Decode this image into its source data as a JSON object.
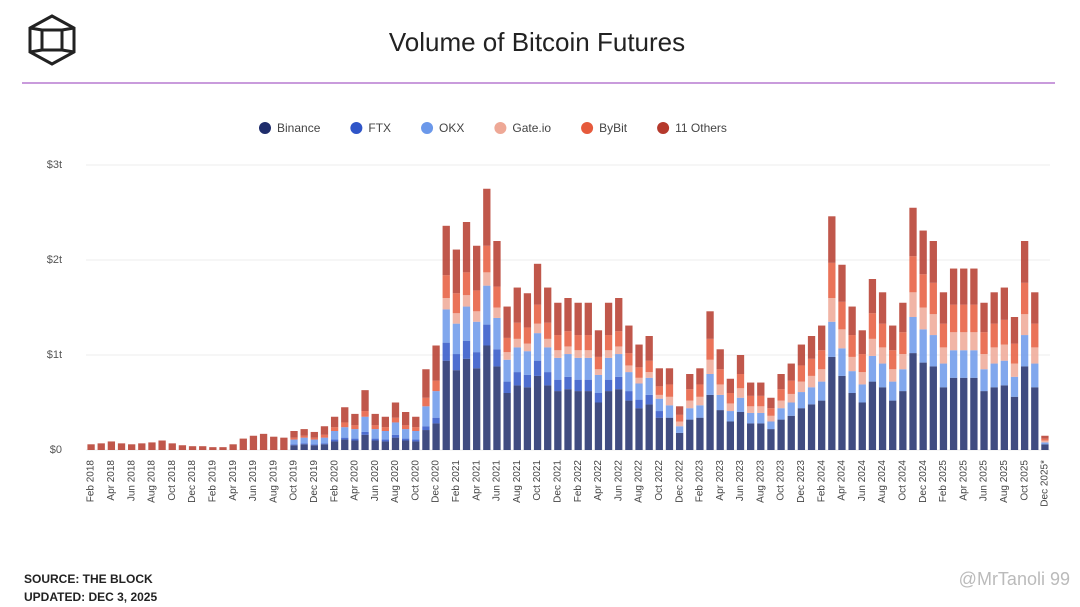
{
  "chart_data": {
    "type": "stacked_bar",
    "title": "Volume of Bitcoin Futures",
    "source": "SOURCE: THE BLOCK",
    "updated": "UPDATED: DEC 3, 2025",
    "watermark": "@MrTanoli 99",
    "categories": [
      "Feb 2018",
      null,
      "Apr 2018",
      null,
      "Jun 2018",
      null,
      "Aug 2018",
      null,
      "Oct 2018",
      null,
      "Dec 2018",
      null,
      "Feb 2019",
      null,
      "Apr 2019",
      null,
      "Jun 2019",
      null,
      "Aug 2019",
      null,
      "Oct 2019",
      null,
      "Dec 2019",
      null,
      "Feb 2020",
      null,
      "Apr 2020",
      null,
      "Jun 2020",
      null,
      "Aug 2020",
      null,
      "Oct 2020",
      null,
      "Dec 2020",
      null,
      "Feb 2021",
      null,
      "Apr 2021",
      null,
      "Jun 2021",
      null,
      "Aug 2021",
      null,
      "Oct 2021",
      null,
      "Dec 2021",
      null,
      "Feb 2022",
      null,
      "Apr 2022",
      null,
      "Jun 2022",
      null,
      "Aug 2022",
      null,
      "Oct 2022",
      null,
      "Dec 2022",
      null,
      "Feb 2023",
      null,
      "Apr 2023",
      null,
      "Jun 2023",
      null,
      "Aug 2023",
      null,
      "Oct 2023",
      null,
      "Dec 2023",
      null,
      "Feb 2024",
      null,
      "Apr 2024",
      null,
      "Jun 2024",
      null,
      "Aug 2024",
      null,
      "Oct 2024",
      null,
      "Dec 2024",
      null,
      "Feb 2025",
      null,
      "Apr 2025",
      null,
      "Jun 2025",
      null,
      "Aug 2025",
      null,
      "Oct 2025",
      null,
      "Dec 2025*"
    ],
    "series": [
      {
        "name": "Binance",
        "color": "#1f2d6b",
        "values": [
          0,
          0,
          0,
          0,
          0,
          0,
          0,
          0,
          0,
          0,
          0,
          0,
          0,
          0,
          0,
          0,
          0,
          0,
          0,
          0,
          0.05,
          0.06,
          0.05,
          0.06,
          0.09,
          0.11,
          0.1,
          0.16,
          0.1,
          0.09,
          0.13,
          0.1,
          0.09,
          0.21,
          0.28,
          0.94,
          0.84,
          0.96,
          0.86,
          1.1,
          0.88,
          0.6,
          0.68,
          0.66,
          0.78,
          0.68,
          0.62,
          0.64,
          0.62,
          0.62,
          0.5,
          0.62,
          0.64,
          0.52,
          0.44,
          0.48,
          0.34,
          0.34,
          0.18,
          0.32,
          0.34,
          0.58,
          0.42,
          0.3,
          0.4,
          0.28,
          0.28,
          0.22,
          0.32,
          0.36,
          0.44,
          0.48,
          0.52,
          0.98,
          0.78,
          0.6,
          0.5,
          0.72,
          0.66,
          0.52,
          0.62,
          1.02,
          0.92,
          0.88,
          0.66,
          0.76,
          0.76,
          0.76,
          0.62,
          0.66,
          0.68,
          0.56,
          0.88,
          0.66,
          0.06
        ]
      },
      {
        "name": "FTX",
        "color": "#2f55c8",
        "values": [
          0,
          0,
          0,
          0,
          0,
          0,
          0,
          0,
          0,
          0,
          0,
          0,
          0,
          0,
          0,
          0,
          0,
          0,
          0,
          0,
          0.01,
          0.01,
          0.01,
          0.01,
          0.02,
          0.02,
          0.02,
          0.03,
          0.02,
          0.02,
          0.03,
          0.02,
          0.02,
          0.04,
          0.06,
          0.19,
          0.17,
          0.19,
          0.17,
          0.22,
          0.18,
          0.12,
          0.14,
          0.13,
          0.16,
          0.14,
          0.12,
          0.13,
          0.12,
          0.12,
          0.1,
          0.12,
          0.13,
          0.1,
          0.09,
          0.1,
          0.07,
          0,
          0,
          0,
          0,
          0,
          0,
          0,
          0,
          0,
          0,
          0,
          0,
          0,
          0,
          0,
          0,
          0,
          0,
          0,
          0,
          0,
          0,
          0,
          0,
          0,
          0,
          0,
          0,
          0,
          0,
          0,
          0,
          0,
          0,
          0,
          0,
          0,
          0
        ]
      },
      {
        "name": "OKX",
        "color": "#6b98ea",
        "values": [
          0,
          0,
          0,
          0,
          0,
          0,
          0,
          0,
          0,
          0,
          0,
          0,
          0,
          0,
          0,
          0,
          0,
          0,
          0,
          0,
          0.05,
          0.06,
          0.05,
          0.06,
          0.09,
          0.11,
          0.1,
          0.16,
          0.1,
          0.09,
          0.13,
          0.1,
          0.09,
          0.21,
          0.28,
          0.35,
          0.32,
          0.36,
          0.32,
          0.41,
          0.33,
          0.23,
          0.26,
          0.25,
          0.29,
          0.26,
          0.23,
          0.24,
          0.23,
          0.23,
          0.19,
          0.23,
          0.24,
          0.2,
          0.17,
          0.18,
          0.13,
          0.13,
          0.07,
          0.12,
          0.13,
          0.22,
          0.16,
          0.11,
          0.15,
          0.11,
          0.11,
          0.08,
          0.12,
          0.14,
          0.17,
          0.18,
          0.2,
          0.37,
          0.29,
          0.23,
          0.19,
          0.27,
          0.25,
          0.2,
          0.23,
          0.38,
          0.35,
          0.33,
          0.25,
          0.29,
          0.29,
          0.29,
          0.23,
          0.25,
          0.26,
          0.21,
          0.33,
          0.25,
          0.02
        ]
      },
      {
        "name": "Gate.io",
        "color": "#eea896",
        "values": [
          0,
          0,
          0,
          0,
          0,
          0,
          0,
          0,
          0,
          0,
          0,
          0,
          0,
          0,
          0,
          0,
          0,
          0,
          0,
          0,
          0,
          0,
          0,
          0,
          0,
          0,
          0,
          0,
          0,
          0,
          0,
          0,
          0,
          0,
          0,
          0.12,
          0.11,
          0.12,
          0.11,
          0.14,
          0.11,
          0.08,
          0.09,
          0.08,
          0.1,
          0.09,
          0.08,
          0.08,
          0.08,
          0.08,
          0.06,
          0.08,
          0.08,
          0.07,
          0.06,
          0.06,
          0.04,
          0.09,
          0.05,
          0.08,
          0.09,
          0.15,
          0.11,
          0.08,
          0.1,
          0.07,
          0.07,
          0.06,
          0.08,
          0.09,
          0.11,
          0.12,
          0.13,
          0.25,
          0.2,
          0.15,
          0.13,
          0.18,
          0.17,
          0.13,
          0.16,
          0.26,
          0.23,
          0.22,
          0.17,
          0.19,
          0.19,
          0.19,
          0.16,
          0.17,
          0.17,
          0.14,
          0.22,
          0.17,
          0.02
        ]
      },
      {
        "name": "ByBit",
        "color": "#e65a3c",
        "values": [
          0,
          0,
          0,
          0,
          0,
          0,
          0,
          0,
          0,
          0,
          0,
          0,
          0,
          0,
          0,
          0,
          0,
          0,
          0,
          0,
          0.02,
          0.02,
          0.02,
          0.03,
          0.04,
          0.05,
          0.04,
          0.06,
          0.04,
          0.04,
          0.05,
          0.04,
          0.04,
          0.09,
          0.11,
          0.24,
          0.21,
          0.24,
          0.22,
          0.28,
          0.22,
          0.15,
          0.17,
          0.17,
          0.2,
          0.17,
          0.16,
          0.16,
          0.16,
          0.16,
          0.13,
          0.16,
          0.16,
          0.13,
          0.11,
          0.12,
          0.09,
          0.13,
          0.07,
          0.12,
          0.13,
          0.22,
          0.16,
          0.11,
          0.15,
          0.11,
          0.11,
          0.08,
          0.12,
          0.14,
          0.17,
          0.18,
          0.2,
          0.37,
          0.29,
          0.23,
          0.19,
          0.27,
          0.25,
          0.2,
          0.23,
          0.38,
          0.35,
          0.33,
          0.25,
          0.29,
          0.29,
          0.29,
          0.23,
          0.25,
          0.26,
          0.21,
          0.33,
          0.25,
          0.02
        ]
      },
      {
        "name": "11 Others",
        "color": "#b5392c",
        "values": [
          0.06,
          0.07,
          0.09,
          0.07,
          0.06,
          0.07,
          0.08,
          0.1,
          0.07,
          0.05,
          0.04,
          0.04,
          0.03,
          0.03,
          0.06,
          0.12,
          0.15,
          0.17,
          0.14,
          0.13,
          0.07,
          0.07,
          0.06,
          0.09,
          0.11,
          0.16,
          0.12,
          0.22,
          0.12,
          0.11,
          0.16,
          0.14,
          0.11,
          0.3,
          0.37,
          0.52,
          0.46,
          0.53,
          0.47,
          0.6,
          0.48,
          0.33,
          0.37,
          0.36,
          0.43,
          0.37,
          0.34,
          0.35,
          0.34,
          0.34,
          0.28,
          0.34,
          0.35,
          0.29,
          0.24,
          0.26,
          0.19,
          0.17,
          0.09,
          0.16,
          0.17,
          0.29,
          0.21,
          0.15,
          0.2,
          0.14,
          0.14,
          0.11,
          0.16,
          0.18,
          0.22,
          0.24,
          0.26,
          0.49,
          0.39,
          0.3,
          0.25,
          0.36,
          0.33,
          0.26,
          0.31,
          0.51,
          0.46,
          0.44,
          0.33,
          0.38,
          0.38,
          0.38,
          0.31,
          0.33,
          0.34,
          0.28,
          0.44,
          0.33,
          0.03
        ]
      }
    ],
    "ylim": [
      0,
      3
    ],
    "yticks": [
      {
        "value": 0,
        "label": "$0"
      },
      {
        "value": 1,
        "label": "$1t"
      },
      {
        "value": 2,
        "label": "$2t"
      },
      {
        "value": 3,
        "label": "$3t"
      }
    ],
    "grid": true
  }
}
